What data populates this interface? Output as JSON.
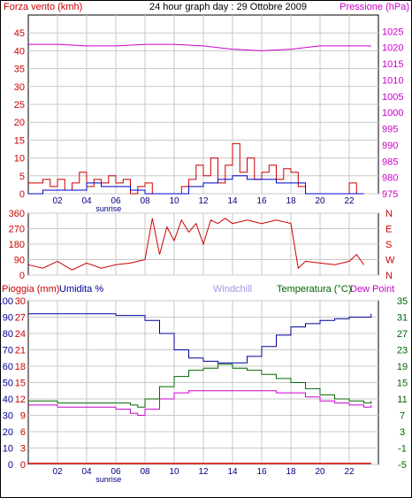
{
  "header": {
    "left_label": "Forza vento (kmh)",
    "title": "24 hour graph day : 29 Ottobre 2009",
    "right_label": "Pressione (hPa)"
  },
  "colors": {
    "wind": "#cc0000",
    "wind_avg": "#0000cc",
    "pressure": "#cc00cc",
    "direction": "#cc0000",
    "rain": "#cc0000",
    "humidity": "#000099",
    "windchill": "#9999dd",
    "temperature": "#006600",
    "dewpoint": "#cc00cc",
    "grid": "#c8c8c8"
  },
  "chart_data": [
    {
      "type": "line",
      "name": "wind-pressure",
      "left_label": "Forza vento (kmh)",
      "right_label": "Pressione (hPa)",
      "ylim_left": [
        0,
        50
      ],
      "ylim_right": [
        975,
        1030
      ],
      "y_ticks_left": [
        "0",
        "5",
        "10",
        "15",
        "20",
        "25",
        "30",
        "35",
        "40",
        "45"
      ],
      "y_ticks_right": [
        "975",
        "980",
        "985",
        "990",
        "995",
        "1000",
        "1005",
        "1010",
        "1015",
        "1020",
        "1025"
      ],
      "x_ticks": [
        "02",
        "04",
        "06",
        "08",
        "10",
        "12",
        "14",
        "16",
        "18",
        "20",
        "22"
      ],
      "x_annotation": "sunrise",
      "series": [
        {
          "role": "wind",
          "x": [
            0,
            0.5,
            1,
            1.5,
            2,
            2.5,
            3,
            3.5,
            4,
            4.5,
            5,
            5.5,
            6,
            6.5,
            7,
            7.5,
            8,
            8.5,
            9,
            9.5,
            10,
            10.5,
            11,
            11.5,
            12,
            12.5,
            13,
            13.5,
            14,
            14.5,
            15,
            15.5,
            16,
            16.5,
            17,
            17.5,
            18,
            18.5,
            19,
            19.5,
            20,
            20.5,
            21,
            21.5,
            22,
            22.5,
            23
          ],
          "values": [
            3,
            3,
            4,
            2,
            4,
            1,
            3,
            6,
            2,
            4,
            3,
            5,
            3,
            4,
            0,
            2,
            3,
            0,
            0,
            0,
            0,
            2,
            4,
            8,
            5,
            10,
            3,
            8,
            14,
            6,
            10,
            4,
            6,
            8,
            4,
            7,
            6,
            2,
            0,
            0,
            0,
            0,
            0,
            0,
            3,
            0,
            0
          ]
        },
        {
          "role": "wind_avg",
          "x": [
            0,
            1,
            2,
            3,
            4,
            5,
            6,
            7,
            8,
            9,
            10,
            11,
            12,
            13,
            14,
            15,
            16,
            17,
            18,
            19,
            20,
            21,
            22,
            23
          ],
          "values": [
            0,
            1,
            1,
            1,
            3,
            2,
            2,
            1,
            0,
            0,
            0,
            2,
            3,
            4,
            5,
            4,
            4,
            3,
            3,
            0,
            0,
            0,
            0,
            0
          ],
          "points_per_interval": 1
        },
        {
          "role": "pressure",
          "x": [
            0,
            2,
            4,
            6,
            8,
            10,
            12,
            14,
            16,
            18,
            20,
            22,
            23.5
          ],
          "values": [
            1021,
            1021,
            1020.5,
            1020.5,
            1021,
            1021,
            1020.5,
            1019.5,
            1019,
            1019.5,
            1020.5,
            1020.5,
            1020.5
          ]
        }
      ]
    },
    {
      "type": "line",
      "name": "wind-direction",
      "ylim": [
        0,
        360
      ],
      "y_ticks": [
        "0",
        "90",
        "180",
        "270",
        "360"
      ],
      "right_ticks": [
        "N",
        "W",
        "S",
        "E",
        "N"
      ],
      "x_ticks": [
        "02",
        "04",
        "06",
        "08",
        "10",
        "12",
        "14",
        "16",
        "18",
        "20",
        "22"
      ],
      "series": [
        {
          "role": "direction",
          "x": [
            0,
            1,
            2,
            3,
            4,
            5,
            6,
            7,
            8,
            8.5,
            9,
            9.5,
            10,
            10.5,
            11,
            11.5,
            12,
            12.5,
            13,
            13.5,
            14,
            15,
            16,
            17,
            18,
            18.5,
            19,
            20,
            21,
            22,
            22.5,
            23
          ],
          "values": [
            60,
            40,
            80,
            30,
            70,
            40,
            60,
            70,
            90,
            330,
            120,
            280,
            200,
            320,
            250,
            300,
            180,
            320,
            300,
            330,
            300,
            320,
            300,
            320,
            300,
            40,
            80,
            70,
            60,
            80,
            120,
            60
          ]
        }
      ]
    },
    {
      "type": "line",
      "name": "rain-humidity-temperature",
      "left_outer_label": "Pioggia (mm)",
      "left_inner_label": "Umidita %",
      "center_label": "Windchill",
      "right_label_a": "Temperatura (°C)",
      "right_label_b": "Dew Point",
      "ylim_humidity": [
        0,
        100
      ],
      "ylim_rain": [
        0,
        30
      ],
      "ylim_temp": [
        -5,
        35
      ],
      "y_ticks_humidity": [
        "0",
        "10",
        "20",
        "30",
        "40",
        "50",
        "60",
        "70",
        "80",
        "90",
        "100"
      ],
      "y_ticks_rain": [
        "0",
        "3",
        "6",
        "9",
        "12",
        "15",
        "18",
        "21",
        "24",
        "27",
        "30"
      ],
      "y_ticks_temp": [
        "-5",
        "-1",
        "3",
        "7",
        "11",
        "15",
        "19",
        "23",
        "27",
        "31",
        "35"
      ],
      "x_ticks": [
        "02",
        "04",
        "06",
        "08",
        "10",
        "12",
        "14",
        "16",
        "18",
        "20",
        "22"
      ],
      "x_annotation": "sunrise",
      "series": [
        {
          "role": "humidity",
          "x": [
            0,
            2,
            4,
            6,
            7,
            8,
            9,
            10,
            11,
            12,
            13,
            14,
            15,
            16,
            17,
            18,
            19,
            20,
            21,
            22,
            23.5
          ],
          "values": [
            92,
            92,
            92,
            91,
            91,
            88,
            80,
            70,
            65,
            63,
            62,
            62,
            66,
            72,
            79,
            84,
            86,
            88,
            89,
            90,
            92
          ]
        },
        {
          "role": "temperature",
          "x": [
            0,
            2,
            4,
            6,
            7,
            7.5,
            8,
            9,
            10,
            11,
            12,
            13,
            14,
            15,
            16,
            17,
            18,
            19,
            20,
            21,
            22,
            23,
            23.5
          ],
          "values": [
            10.5,
            10,
            10,
            10,
            9.5,
            9,
            11,
            14,
            16.5,
            18,
            18.5,
            19.5,
            18.5,
            18,
            17,
            16,
            15,
            13.5,
            12,
            11,
            10.5,
            10,
            10.5
          ]
        },
        {
          "role": "dewpoint",
          "x": [
            0,
            2,
            4,
            6,
            7,
            7.5,
            8,
            9,
            10,
            11,
            12,
            13,
            14,
            15,
            16,
            17,
            18,
            19,
            20,
            21,
            22,
            23,
            23.5
          ],
          "values": [
            9.5,
            9,
            9,
            8.5,
            7.5,
            7,
            8.5,
            11,
            12.5,
            13,
            13,
            13,
            13,
            13,
            13,
            12.5,
            12.5,
            11.5,
            10.5,
            10,
            9.5,
            9,
            9.5
          ]
        },
        {
          "role": "rain",
          "x": [
            0,
            23.5
          ],
          "values": [
            0,
            0
          ]
        }
      ]
    }
  ]
}
